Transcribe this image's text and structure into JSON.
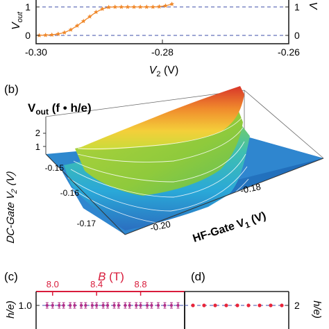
{
  "chart_data": [
    {
      "panel": "a",
      "type": "line",
      "xlabel_main": "V",
      "xlabel_sub": "2",
      "xlabel_unit": " (V)",
      "ylabel_main": "V",
      "ylabel_sub": "out",
      "right_ylabel": "V",
      "xlim": [
        -0.3,
        -0.26
      ],
      "ylim": [
        -0.2,
        1.2
      ],
      "x_ticks": [
        -0.3,
        -0.28,
        -0.26
      ],
      "x_tick_labels": [
        "-0.30",
        "-0.28",
        "-0.26"
      ],
      "y_ticks": [
        0,
        1
      ],
      "y_tick_labels": [
        "0",
        "1"
      ],
      "right_y_tick_labels": [
        "0",
        "1"
      ],
      "dashed_levels": [
        0,
        1
      ],
      "series": [
        {
          "color": "#f0882a",
          "marker": "star",
          "x": [
            -0.2995,
            -0.2985,
            -0.2975,
            -0.2965,
            -0.2955,
            -0.2945,
            -0.2935,
            -0.2925,
            -0.2915,
            -0.2905,
            -0.2895,
            -0.2885,
            -0.2875,
            -0.2865,
            -0.2855,
            -0.2845,
            -0.2835,
            -0.2825,
            -0.2815,
            -0.2805,
            -0.2795,
            -0.2785
          ],
          "y": [
            0.0,
            0.01,
            0.02,
            0.05,
            0.1,
            0.2,
            0.34,
            0.5,
            0.66,
            0.82,
            0.93,
            0.99,
            1.0,
            1.0,
            1.0,
            1.0,
            1.0,
            1.0,
            1.0,
            1.01,
            1.04,
            1.1
          ]
        }
      ]
    },
    {
      "panel": "b",
      "type": "surface",
      "title_main": "V",
      "title_sub": "out",
      "title_unit": " (f • h/e)",
      "z_tick_labels": [
        "1",
        "2"
      ],
      "y_axis_label_main": "DC-Gate V",
      "y_axis_label_sub": "2",
      "y_axis_label_unit": " (V)",
      "y_tick_labels": [
        "-0.15",
        "-0.16",
        "-0.17"
      ],
      "x_axis_label_main": "HF-Gate V",
      "x_axis_label_sub": "1",
      "x_axis_label_unit": " (V)",
      "x_tick_labels": [
        "-0.20",
        "-0.18"
      ]
    },
    {
      "panel": "c",
      "type": "scatter",
      "top_axis_label": "B",
      "top_axis_unit": " (T)",
      "top_axis_color": "#d81b3a",
      "top_ticks": [
        8.0,
        8.4,
        8.8
      ],
      "top_tick_labels": [
        "8.0",
        "8.4",
        "8.8"
      ],
      "xlim": [
        7.85,
        9.2
      ],
      "ylabel": "h/e)",
      "y_tick_labels": [
        "1.0"
      ],
      "series": [
        {
          "color": "#b0308a",
          "marker": "circle",
          "x": [
            7.95,
            8.0,
            8.06,
            8.1,
            8.16,
            8.2,
            8.26,
            8.3,
            8.36,
            8.4,
            8.46,
            8.5,
            8.56,
            8.6,
            8.66,
            8.7,
            8.76,
            8.8,
            8.86,
            8.9,
            8.96,
            9.02,
            9.08,
            9.14
          ],
          "y": [
            1.0,
            1.0,
            1.0,
            1.0,
            1.0,
            1.0,
            1.0,
            1.0,
            1.0,
            1.0,
            1.0,
            1.0,
            1.0,
            1.0,
            1.0,
            1.0,
            1.0,
            1.0,
            1.0,
            1.0,
            1.0,
            1.0,
            1.0,
            1.0
          ]
        }
      ]
    },
    {
      "panel": "d",
      "type": "scatter",
      "right_ylabel": "h/e)",
      "right_y_tick_labels": [
        "2"
      ],
      "series": [
        {
          "color": "#e8253a",
          "marker": "circle",
          "y": [
            2,
            2,
            2,
            2,
            2,
            2,
            2,
            2,
            2
          ]
        }
      ]
    }
  ],
  "panel_labels": {
    "b": "(b)",
    "c": "(c)",
    "d": "(d)"
  },
  "colors": {
    "dashed": "#3d4ea8",
    "surface_high": "#e8562a",
    "surface_mid": "#8fca3c",
    "surface_low": "#2f7fc6"
  }
}
